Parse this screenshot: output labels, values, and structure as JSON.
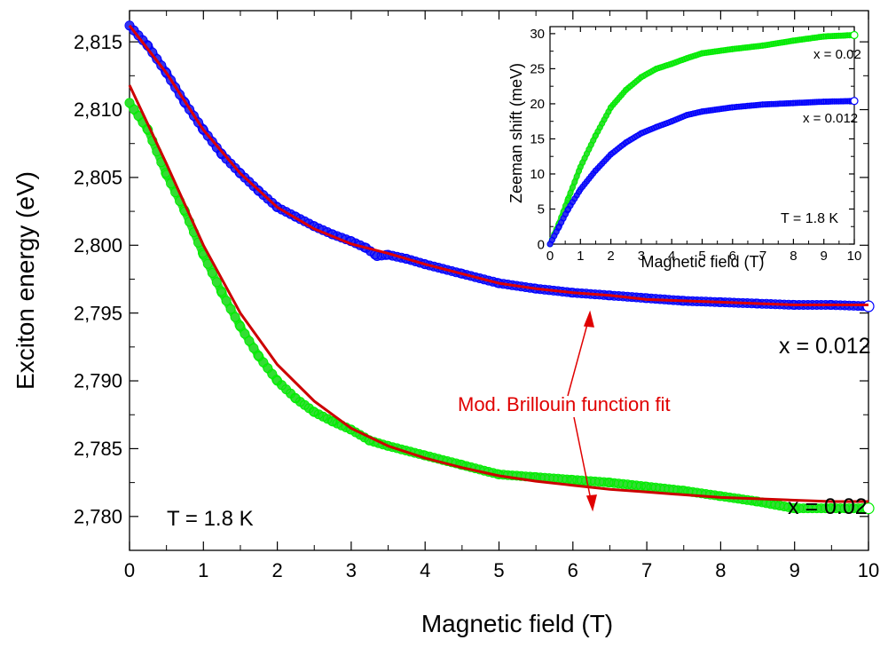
{
  "chart_data": [
    {
      "type": "scatter",
      "xlabel": "Magnetic field (T)",
      "ylabel": "Exciton energy (eV)",
      "xlim": [
        0,
        10
      ],
      "ylim": [
        2.7775,
        2.8173
      ],
      "x_ticks": [
        "0",
        "1",
        "2",
        "3",
        "4",
        "5",
        "6",
        "7",
        "8",
        "9",
        "10"
      ],
      "y_ticks": [
        "2,780",
        "2,785",
        "2,790",
        "2,795",
        "2,800",
        "2,805",
        "2,810",
        "2,815"
      ],
      "series": [
        {
          "name": "x = 0.012",
          "color": "#0000ff",
          "fill": "#3333ee",
          "marker": "open-circle",
          "points": [
            [
              0,
              2.8162
            ],
            [
              0.25,
              2.8147
            ],
            [
              0.5,
              2.8127
            ],
            [
              0.75,
              2.8105
            ],
            [
              1,
              2.8085
            ],
            [
              1.25,
              2.8067
            ],
            [
              1.5,
              2.8053
            ],
            [
              1.75,
              2.804
            ],
            [
              2,
              2.8028
            ],
            [
              2.25,
              2.8021
            ],
            [
              2.5,
              2.8014
            ],
            [
              2.75,
              2.8008
            ],
            [
              3,
              2.8003
            ],
            [
              3.2,
              2.7998
            ],
            [
              3.35,
              2.7992
            ],
            [
              3.5,
              2.7993
            ],
            [
              3.75,
              2.799
            ],
            [
              4,
              2.7986
            ],
            [
              4.5,
              2.7979
            ],
            [
              5,
              2.7972
            ],
            [
              5.5,
              2.7968
            ],
            [
              6,
              2.7965
            ],
            [
              6.5,
              2.7963
            ],
            [
              7,
              2.7961
            ],
            [
              7.5,
              2.7959
            ],
            [
              8,
              2.7958
            ],
            [
              8.5,
              2.7957
            ],
            [
              9,
              2.7956
            ],
            [
              9.5,
              2.7956
            ],
            [
              10,
              2.7955
            ]
          ]
        },
        {
          "name": "x = 0.02",
          "color": "#00ee00",
          "fill": "#33dd33",
          "marker": "open-circle",
          "points": [
            [
              0,
              2.8105
            ],
            [
              0.25,
              2.8085
            ],
            [
              0.5,
              2.8052
            ],
            [
              0.75,
              2.8025
            ],
            [
              1,
              2.7993
            ],
            [
              1.25,
              2.7965
            ],
            [
              1.5,
              2.794
            ],
            [
              1.75,
              2.7918
            ],
            [
              2,
              2.79
            ],
            [
              2.25,
              2.7887
            ],
            [
              2.5,
              2.7877
            ],
            [
              2.75,
              2.787
            ],
            [
              3,
              2.7864
            ],
            [
              3.25,
              2.7856
            ],
            [
              3.5,
              2.7852
            ],
            [
              4,
              2.7845
            ],
            [
              4.5,
              2.7838
            ],
            [
              5,
              2.7831
            ],
            [
              5.5,
              2.7829
            ],
            [
              6,
              2.7827
            ],
            [
              6.5,
              2.7825
            ],
            [
              7,
              2.7822
            ],
            [
              7.5,
              2.7819
            ],
            [
              8,
              2.7815
            ],
            [
              8.5,
              2.7811
            ],
            [
              9,
              2.7806
            ],
            [
              9.5,
              2.7806
            ],
            [
              10,
              2.7806
            ]
          ]
        },
        {
          "name": "Mod. Brillouin function fit (x = 0.012)",
          "type": "line",
          "color": "#dd0000",
          "points": [
            [
              0,
              2.8162
            ],
            [
              0.5,
              2.8127
            ],
            [
              1,
              2.8085
            ],
            [
              1.5,
              2.8053
            ],
            [
              2,
              2.8028
            ],
            [
              2.5,
              2.8012
            ],
            [
              3,
              2.8001
            ],
            [
              3.5,
              2.7994
            ],
            [
              4,
              2.7986
            ],
            [
              4.5,
              2.7979
            ],
            [
              5,
              2.7972
            ],
            [
              5.5,
              2.7968
            ],
            [
              6,
              2.7965
            ],
            [
              6.5,
              2.7963
            ],
            [
              7,
              2.796
            ],
            [
              7.5,
              2.7959
            ],
            [
              8,
              2.7958
            ],
            [
              8.5,
              2.7957
            ],
            [
              9,
              2.7956
            ],
            [
              9.5,
              2.7956
            ],
            [
              10,
              2.7956
            ]
          ]
        },
        {
          "name": "Mod. Brillouin function fit (x = 0.02)",
          "type": "line",
          "color": "#cc0000",
          "points": [
            [
              0,
              2.8118
            ],
            [
              0.5,
              2.806
            ],
            [
              1,
              2.8
            ],
            [
              1.5,
              2.795
            ],
            [
              2,
              2.7912
            ],
            [
              2.5,
              2.7885
            ],
            [
              3,
              2.7865
            ],
            [
              3.5,
              2.7852
            ],
            [
              4,
              2.7843
            ],
            [
              4.5,
              2.7836
            ],
            [
              5,
              2.783
            ],
            [
              5.5,
              2.7826
            ],
            [
              6,
              2.7823
            ],
            [
              6.5,
              2.782
            ],
            [
              7,
              2.7818
            ],
            [
              7.5,
              2.7816
            ],
            [
              8,
              2.7814
            ],
            [
              8.5,
              2.7813
            ],
            [
              9,
              2.7812
            ],
            [
              9.5,
              2.7811
            ],
            [
              10,
              2.7811
            ]
          ]
        }
      ],
      "annotations": [
        {
          "text": "x = 0.012"
        },
        {
          "text": "x = 0.02"
        },
        {
          "text": "Mod. Brillouin function fit"
        },
        {
          "text": "T = 1.8 K"
        }
      ]
    },
    {
      "type": "scatter",
      "xlabel": "Magnetic field (T)",
      "ylabel": "Zeeman shift (meV)",
      "xlim": [
        0,
        10
      ],
      "ylim": [
        0,
        31
      ],
      "x_ticks": [
        "0",
        "1",
        "2",
        "3",
        "4",
        "5",
        "6",
        "7",
        "8",
        "9",
        "10"
      ],
      "y_ticks": [
        "0",
        "5",
        "10",
        "15",
        "20",
        "25",
        "30"
      ],
      "series": [
        {
          "name": "x = 0.02",
          "color": "#00ee00",
          "fill": "#33dd33",
          "points": [
            [
              0,
              0
            ],
            [
              0.3,
              3.0
            ],
            [
              0.6,
              6.5
            ],
            [
              1,
              11.0
            ],
            [
              1.5,
              15.5
            ],
            [
              2,
              19.5
            ],
            [
              2.5,
              22.0
            ],
            [
              3,
              23.8
            ],
            [
              3.5,
              25.0
            ],
            [
              4,
              25.7
            ],
            [
              4.5,
              26.5
            ],
            [
              5,
              27.2
            ],
            [
              6,
              27.8
            ],
            [
              7,
              28.3
            ],
            [
              8,
              29.0
            ],
            [
              9,
              29.6
            ],
            [
              10,
              29.8
            ]
          ]
        },
        {
          "name": "x = 0.012",
          "color": "#0000ff",
          "fill": "#3333ee",
          "points": [
            [
              0,
              0
            ],
            [
              0.3,
              2.5
            ],
            [
              0.6,
              5.0
            ],
            [
              1,
              7.8
            ],
            [
              1.5,
              10.5
            ],
            [
              2,
              12.8
            ],
            [
              2.5,
              14.5
            ],
            [
              3,
              15.8
            ],
            [
              3.5,
              16.7
            ],
            [
              4,
              17.5
            ],
            [
              4.5,
              18.4
            ],
            [
              5,
              18.9
            ],
            [
              6,
              19.5
            ],
            [
              7,
              19.9
            ],
            [
              8,
              20.1
            ],
            [
              9,
              20.3
            ],
            [
              10,
              20.4
            ]
          ]
        }
      ],
      "annotations": [
        {
          "text": "x = 0.02"
        },
        {
          "text": "x = 0.012"
        },
        {
          "text": "T = 1.8 K"
        }
      ]
    }
  ]
}
